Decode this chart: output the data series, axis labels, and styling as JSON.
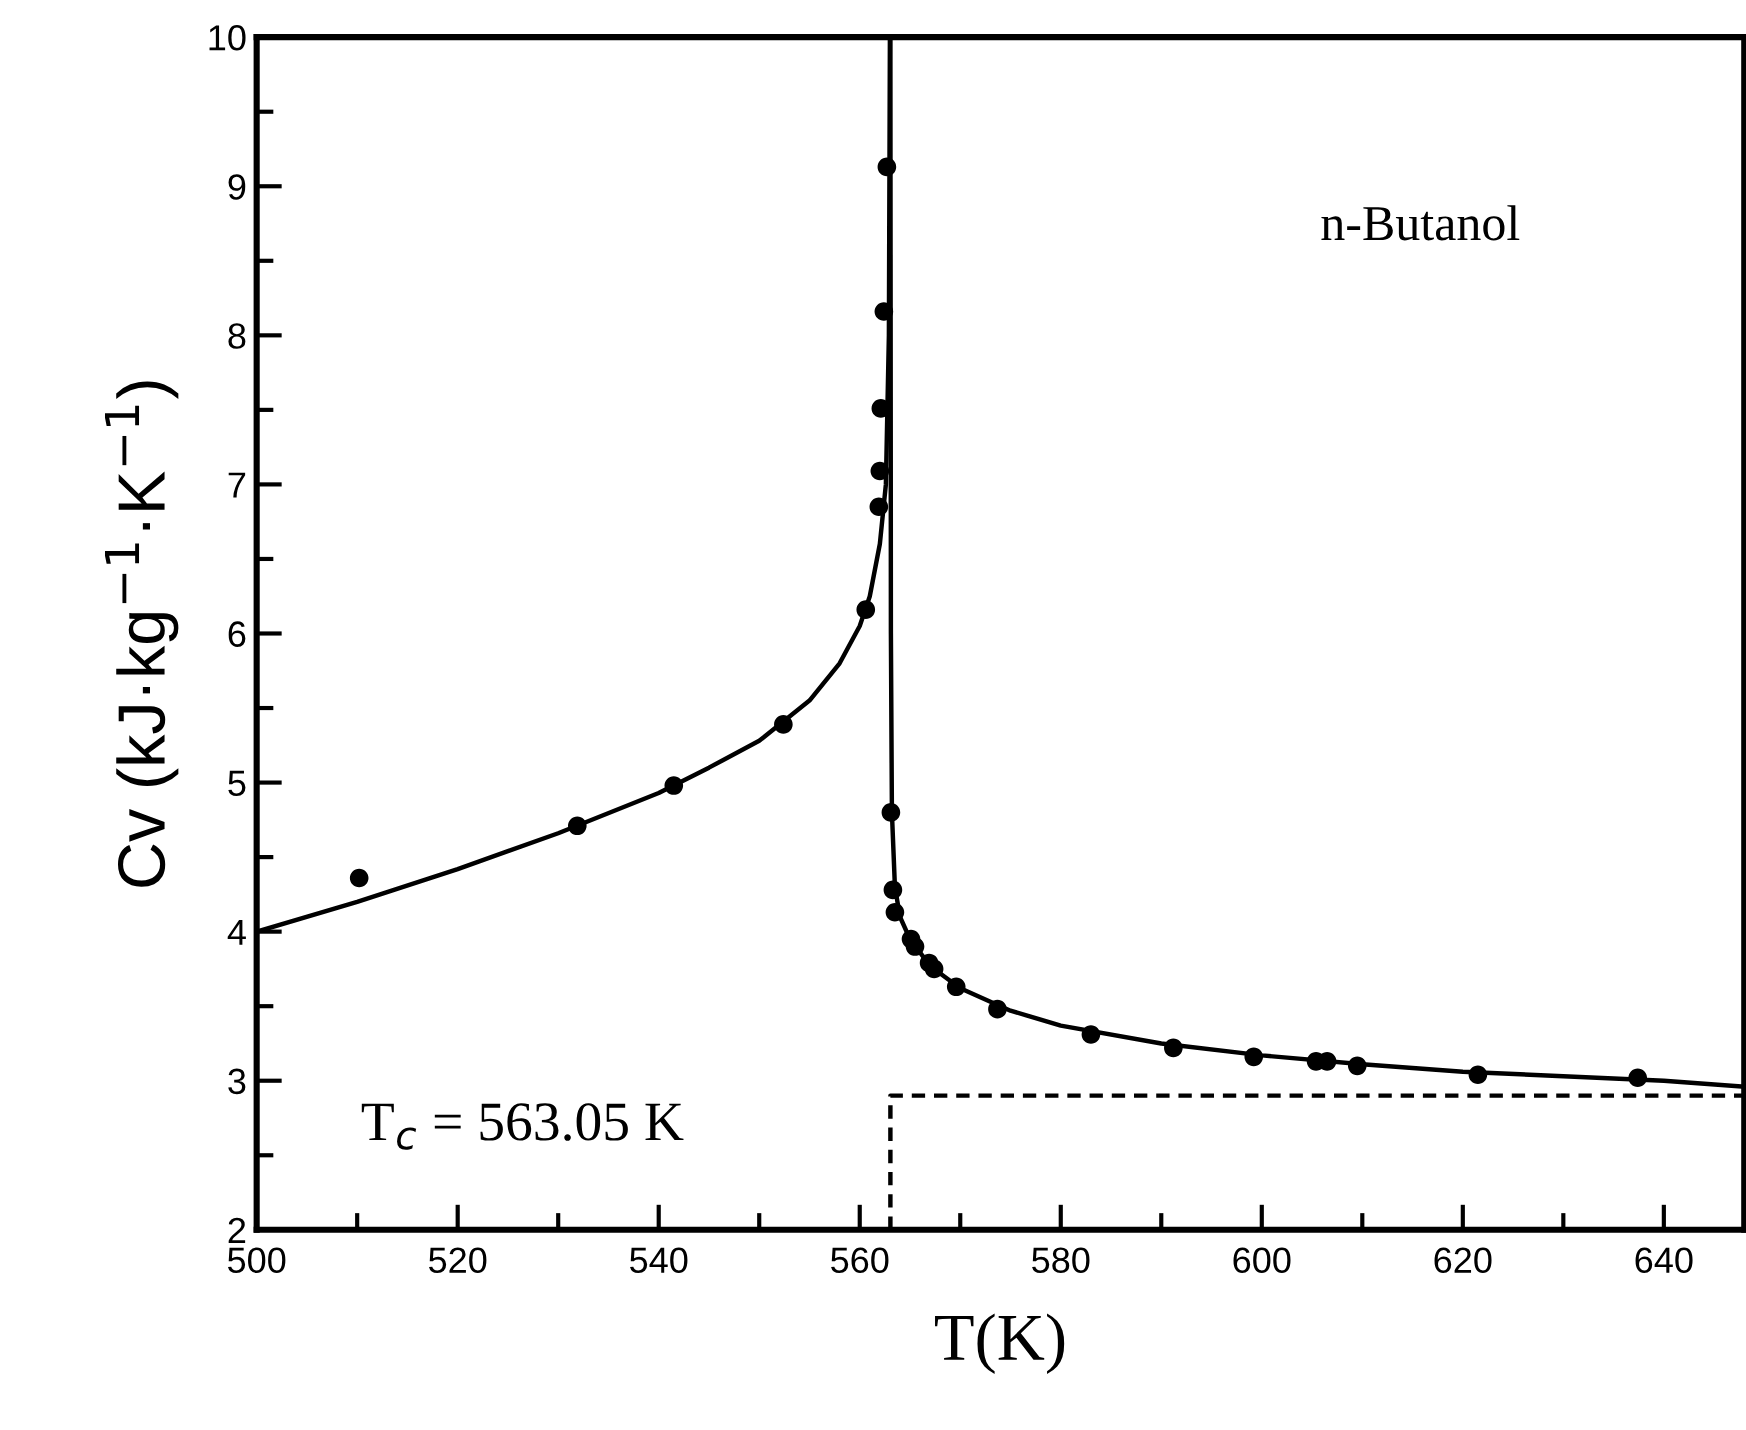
{
  "chart_data": {
    "type": "scatter",
    "xlabel": "T(K)",
    "ylabel": "Cv (kJ·kg$^{−1}$·K$^{−1}$)",
    "annotations": [
      "n-Butanol",
      "T$_{c}$ = 563.05 K"
    ],
    "xlim": [
      500,
      648
    ],
    "ylim": [
      2,
      10
    ],
    "xticks": [
      500,
      520,
      540,
      560,
      580,
      600,
      620,
      640
    ],
    "yticks": [
      2,
      3,
      4,
      5,
      6,
      7,
      8,
      9,
      10
    ],
    "grid": false,
    "legend": false,
    "series": [
      {
        "color": "#000000",
        "marker": "circle",
        "x": [
          510.2,
          531.9,
          541.5,
          552.4,
          560.6,
          561.9,
          562.0,
          562.1,
          562.4,
          562.7,
          563.1,
          563.3,
          563.5,
          565.1,
          565.5,
          566.9,
          567.4,
          569.6,
          573.7,
          583.0,
          591.2,
          599.2,
          605.4,
          606.5,
          609.5,
          621.5,
          637.4
        ],
        "values": [
          4.36,
          4.71,
          4.98,
          5.39,
          6.16,
          6.85,
          7.09,
          7.51,
          8.16,
          9.13,
          4.8,
          4.28,
          4.13,
          3.95,
          3.9,
          3.79,
          3.75,
          3.63,
          3.48,
          3.31,
          3.22,
          3.16,
          3.13,
          3.13,
          3.1,
          3.04,
          3.02
        ]
      },
      {
        "type": "line",
        "color": "#000000",
        "marker": "none",
        "line_style": "solid",
        "x": [
          500,
          510,
          520,
          530,
          540,
          545,
          550,
          555,
          558,
          560,
          561,
          562,
          562.6,
          562.9,
          563.0
        ],
        "values": [
          4.0,
          4.2,
          4.42,
          4.66,
          4.93,
          5.1,
          5.28,
          5.55,
          5.8,
          6.05,
          6.25,
          6.6,
          7.0,
          8.0,
          10.0
        ]
      },
      {
        "type": "line",
        "color": "#000000",
        "marker": "none",
        "line_style": "solid",
        "x": [
          563.05,
          563.1,
          563.2,
          563.5,
          564,
          565,
          567,
          570,
          575,
          580,
          590,
          600,
          610,
          620,
          630,
          640,
          648
        ],
        "values": [
          10.0,
          6.0,
          4.8,
          4.3,
          4.1,
          3.95,
          3.77,
          3.62,
          3.47,
          3.37,
          3.25,
          3.17,
          3.11,
          3.06,
          3.03,
          3.0,
          2.96
        ]
      },
      {
        "type": "line",
        "color": "#000000",
        "marker": "none",
        "line_style": "dashed",
        "x": [
          563.05,
          563.05,
          648
        ],
        "values": [
          2,
          2.9,
          2.9
        ]
      }
    ]
  }
}
